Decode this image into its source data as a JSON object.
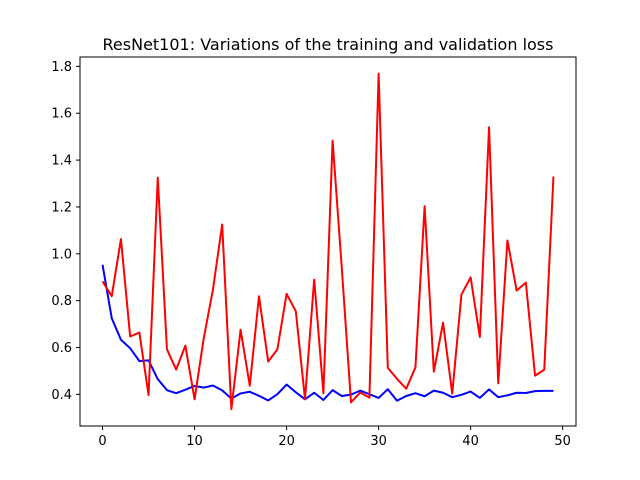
{
  "chart_data": {
    "type": "line",
    "title": "ResNet101: Variations of the training and validation loss",
    "xlabel": "",
    "ylabel": "",
    "xlim": [
      -2.45,
      51.45
    ],
    "ylim": [
      0.265,
      1.84
    ],
    "x_ticks": [
      0,
      10,
      20,
      30,
      40,
      50
    ],
    "y_ticks": [
      0.4,
      0.6,
      0.8,
      1.0,
      1.2,
      1.4,
      1.6,
      1.8
    ],
    "x_tick_labels": [
      "0",
      "10",
      "20",
      "30",
      "40",
      "50"
    ],
    "y_tick_labels": [
      "0.4",
      "0.6",
      "0.8",
      "1.0",
      "1.2",
      "1.4",
      "1.6",
      "1.8"
    ],
    "grid": false,
    "legend": "none",
    "x": [
      0,
      1,
      2,
      3,
      4,
      5,
      6,
      7,
      8,
      9,
      10,
      11,
      12,
      13,
      14,
      15,
      16,
      17,
      18,
      19,
      20,
      21,
      22,
      23,
      24,
      25,
      26,
      27,
      28,
      29,
      30,
      31,
      32,
      33,
      34,
      35,
      36,
      37,
      38,
      39,
      40,
      41,
      42,
      43,
      44,
      45,
      46,
      47,
      48,
      49
    ],
    "series": [
      {
        "color": "#0000ff",
        "values": [
          0.953,
          0.725,
          0.633,
          0.597,
          0.542,
          0.545,
          0.465,
          0.418,
          0.405,
          0.42,
          0.436,
          0.429,
          0.438,
          0.417,
          0.382,
          0.404,
          0.411,
          0.394,
          0.374,
          0.401,
          0.442,
          0.409,
          0.379,
          0.407,
          0.376,
          0.418,
          0.393,
          0.399,
          0.416,
          0.401,
          0.385,
          0.422,
          0.373,
          0.393,
          0.405,
          0.392,
          0.416,
          0.407,
          0.388,
          0.398,
          0.412,
          0.385,
          0.421,
          0.388,
          0.396,
          0.407,
          0.406,
          0.414,
          0.415,
          0.415
        ]
      },
      {
        "color": "#ff0000",
        "values": [
          0.882,
          0.819,
          1.063,
          0.647,
          0.664,
          0.397,
          1.325,
          0.592,
          0.506,
          0.608,
          0.379,
          0.64,
          0.848,
          1.125,
          0.337,
          0.676,
          0.437,
          0.819,
          0.54,
          0.592,
          0.829,
          0.755,
          0.38,
          0.89,
          0.405,
          1.483,
          0.939,
          0.366,
          0.408,
          0.386,
          1.769,
          0.513,
          0.466,
          0.424,
          0.515,
          1.203,
          0.497,
          0.706,
          0.403,
          0.826,
          0.899,
          0.645,
          1.54,
          0.447,
          1.057,
          0.843,
          0.877,
          0.48,
          0.505,
          1.33
        ]
      }
    ]
  }
}
